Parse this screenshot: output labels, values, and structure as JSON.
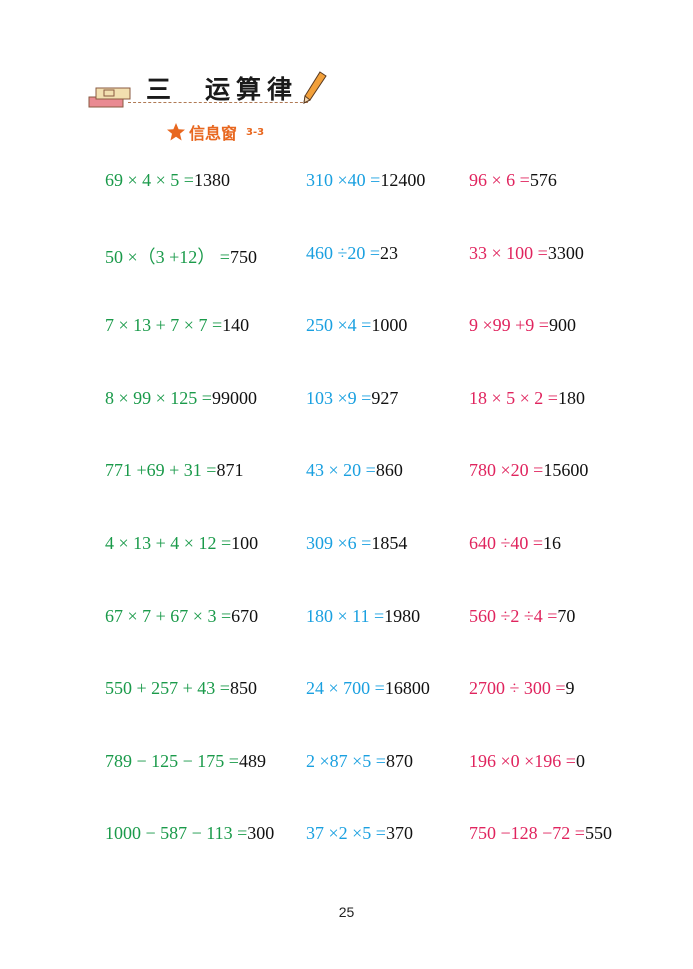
{
  "header": {
    "unit": "三",
    "title": "运算律",
    "subtitle": "信息窗",
    "code": "3-3"
  },
  "colors": {
    "col1": "#1a9a4a",
    "col2": "#1aa0e0",
    "col3": "#e0245e",
    "subtitle": "#e8671f"
  },
  "columns": [
    [
      {
        "expr": "69 × 4 × 5 =",
        "ans": "1380"
      },
      {
        "expr": "50 ×（3 +12） =",
        "ans": "750"
      },
      {
        "expr": "7 × 13 + 7 × 7 =",
        "ans": "140"
      },
      {
        "expr": "8 × 99 × 125 =",
        "ans": "99000"
      },
      {
        "expr": "771 +69 + 31 =",
        "ans": "871"
      },
      {
        "expr": "4 × 13 + 4 × 12 =",
        "ans": "100"
      },
      {
        "expr": "67 × 7 + 67 × 3 =",
        "ans": "670"
      },
      {
        "expr": "550 + 257 + 43 =",
        "ans": "850"
      },
      {
        "expr": "789 − 125 − 175 =",
        "ans": "489"
      },
      {
        "expr": "1000 − 587 − 113 =",
        "ans": "300"
      }
    ],
    [
      {
        "expr": "310 ×40 =",
        "ans": "12400"
      },
      {
        "expr": "460 ÷20 =",
        "ans": "23"
      },
      {
        "expr": "250 ×4 =",
        "ans": "1000"
      },
      {
        "expr": "103 ×9 =",
        "ans": "927"
      },
      {
        "expr": "43 × 20 =",
        "ans": "860"
      },
      {
        "expr": "309 ×6 =",
        "ans": "1854"
      },
      {
        "expr": "180 × 11 =",
        "ans": "1980"
      },
      {
        "expr": "24 × 700 =",
        "ans": "16800"
      },
      {
        "expr": "2 ×87 ×5 =",
        "ans": "870"
      },
      {
        "expr": "37 ×2 ×5 =",
        "ans": "370"
      }
    ],
    [
      {
        "expr": "96 × 6 =",
        "ans": "576"
      },
      {
        "expr": "33 × 100 =",
        "ans": "3300"
      },
      {
        "expr": "9 ×99 +9 =",
        "ans": "900"
      },
      {
        "expr": "18 × 5 × 2 =",
        "ans": "180"
      },
      {
        "expr": "780 ×20 =",
        "ans": "15600"
      },
      {
        "expr": "640 ÷40 =",
        "ans": "16"
      },
      {
        "expr": "560 ÷2 ÷4 =",
        "ans": "70"
      },
      {
        "expr": "2700 ÷ 300 =",
        "ans": "9"
      },
      {
        "expr": "196 ×0 ×196 =",
        "ans": "0"
      },
      {
        "expr": "750 −128 −72 =",
        "ans": "550"
      }
    ]
  ],
  "page_number": "25"
}
